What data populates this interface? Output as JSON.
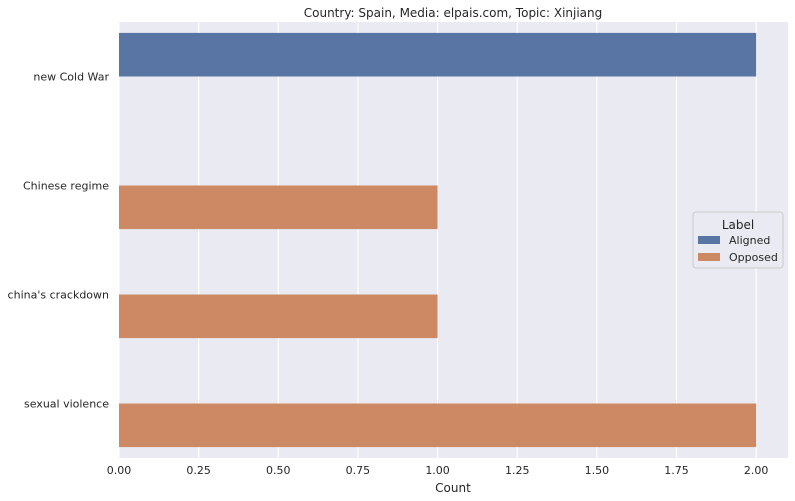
{
  "chart_data": {
    "type": "bar",
    "orientation": "horizontal",
    "title": "Country: Spain, Media: elpais.com, Topic: Xinjiang",
    "xlabel": "Count",
    "ylabel": "",
    "xlim": [
      0,
      2.1
    ],
    "xticks": [
      "0.00",
      "0.25",
      "0.50",
      "0.75",
      "1.00",
      "1.25",
      "1.50",
      "1.75",
      "2.00"
    ],
    "xtick_values": [
      0,
      0.25,
      0.5,
      0.75,
      1.0,
      1.25,
      1.5,
      1.75,
      2.0
    ],
    "grid": true,
    "categories": [
      "new Cold War",
      "Chinese regime",
      "china's crackdown",
      "sexual violence"
    ],
    "series": [
      {
        "name": "Aligned",
        "color": "#5875a4",
        "values": [
          2,
          0,
          0,
          0
        ]
      },
      {
        "name": "Opposed",
        "color": "#cc8963",
        "values": [
          0,
          1,
          1,
          2
        ]
      }
    ],
    "legend": {
      "title": "Label",
      "placement": "center-right"
    }
  }
}
